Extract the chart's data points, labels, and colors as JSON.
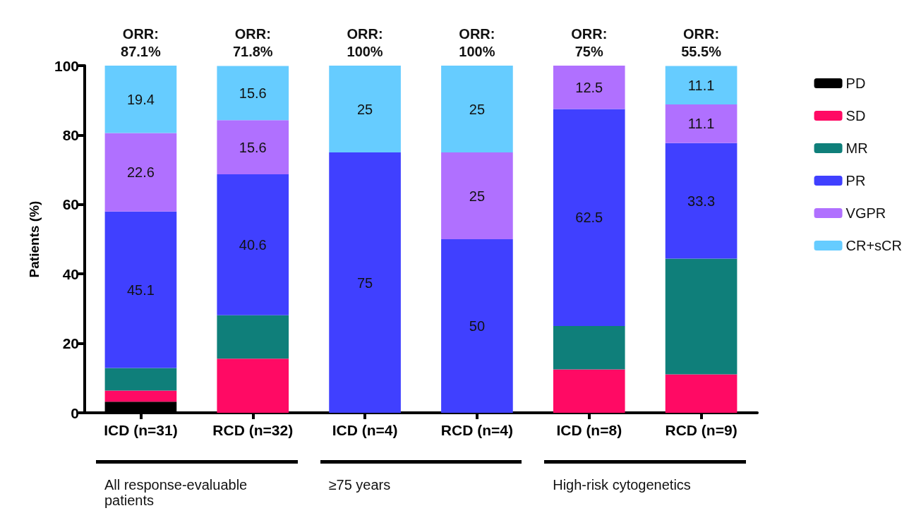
{
  "chart_data": {
    "type": "bar",
    "stacked": true,
    "ylabel": "Patients (%)",
    "categories": [
      "ICD (n=31)",
      "RCD (n=32)",
      "ICD (n=4)",
      "RCD (n=4)",
      "ICD (n=8)",
      "RCD (n=9)"
    ],
    "series": [
      {
        "name": "PD",
        "color": "#000000",
        "values": [
          3.2,
          0,
          0,
          0,
          0,
          0
        ]
      },
      {
        "name": "SD",
        "color": "#ff0a64",
        "values": [
          3.2,
          15.6,
          0,
          0,
          12.5,
          11.1
        ]
      },
      {
        "name": "MR",
        "color": "#0f7f7a",
        "values": [
          6.5,
          12.5,
          0,
          0,
          12.5,
          33.3
        ]
      },
      {
        "name": "PR",
        "color": "#4040ff",
        "values": [
          45.1,
          40.6,
          75,
          50,
          62.5,
          33.3
        ],
        "value_labels": [
          "45.1",
          "40.6",
          "75",
          "50",
          "62.5",
          "33.3"
        ]
      },
      {
        "name": "VGPR",
        "color": "#b070ff",
        "values": [
          22.6,
          15.6,
          0,
          25,
          12.5,
          11.1
        ],
        "value_labels": [
          "22.6",
          "15.6",
          null,
          "25",
          "12.5",
          "11.1"
        ]
      },
      {
        "name": "CR+sCR",
        "color": "#66ccff",
        "values": [
          19.4,
          15.6,
          25,
          25,
          0,
          11.1
        ],
        "value_labels": [
          "19.4",
          "15.6",
          "25",
          "25",
          null,
          "11.1"
        ]
      }
    ],
    "ylim": [
      0,
      100
    ],
    "yticks": [
      0,
      20,
      40,
      60,
      80,
      100
    ],
    "grid": false,
    "legend": "right",
    "annotations": [
      {
        "text": "ORR:\n87.1%",
        "x": "ICD (n=31)",
        "y": 100
      },
      {
        "text": "ORR:\n71.8%",
        "x": "RCD (n=32)",
        "y": 100
      },
      {
        "text": "ORR:\n100%",
        "x": "ICD (n=4)",
        "y": 100
      },
      {
        "text": "ORR:\n100%",
        "x": "RCD (n=4)",
        "y": 100
      },
      {
        "text": "ORR:\n75%",
        "x": "ICD (n=8)",
        "y": 100
      },
      {
        "text": "ORR:\n55.5%",
        "x": "RCD (n=9)",
        "y": 100
      },
      "All response-evaluable patients",
      "≥75 years",
      "High-risk cytogenetics"
    ]
  }
}
